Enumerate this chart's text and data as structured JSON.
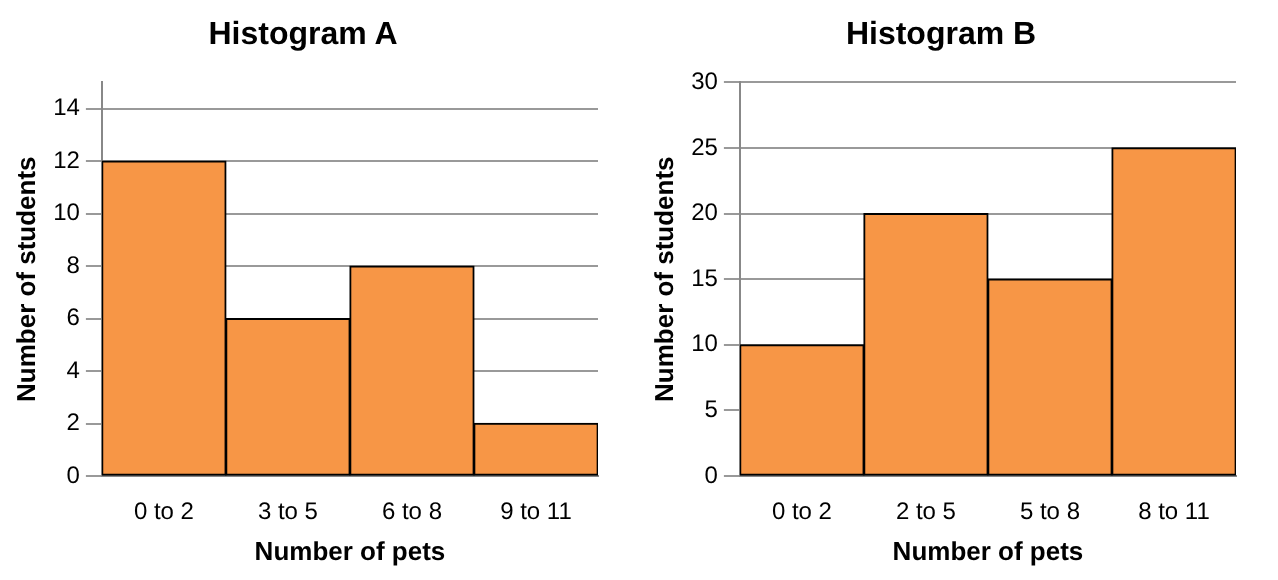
{
  "chart_data": [
    {
      "type": "bar",
      "title": "Histogram A",
      "xlabel": "Number of pets",
      "ylabel": "Number of students",
      "categories": [
        "0 to 2",
        "3 to 5",
        "6 to 8",
        "9 to 11"
      ],
      "values": [
        12,
        6,
        8,
        2
      ],
      "color": "#f79646",
      "ylim": [
        0,
        15
      ],
      "yticks": [
        0,
        2,
        4,
        6,
        8,
        10,
        12,
        14
      ],
      "grid": "y",
      "legend": false
    },
    {
      "type": "bar",
      "title": "Histogram B",
      "xlabel": "Number of pets",
      "ylabel": "Number of students",
      "categories": [
        "0 to 2",
        "2 to 5",
        "5 to 8",
        "8 to 11"
      ],
      "values": [
        10,
        20,
        15,
        25
      ],
      "color": "#f79646",
      "ylim": [
        0,
        30
      ],
      "yticks": [
        0,
        5,
        10,
        15,
        20,
        25,
        30
      ],
      "grid": "y",
      "legend": false
    }
  ]
}
